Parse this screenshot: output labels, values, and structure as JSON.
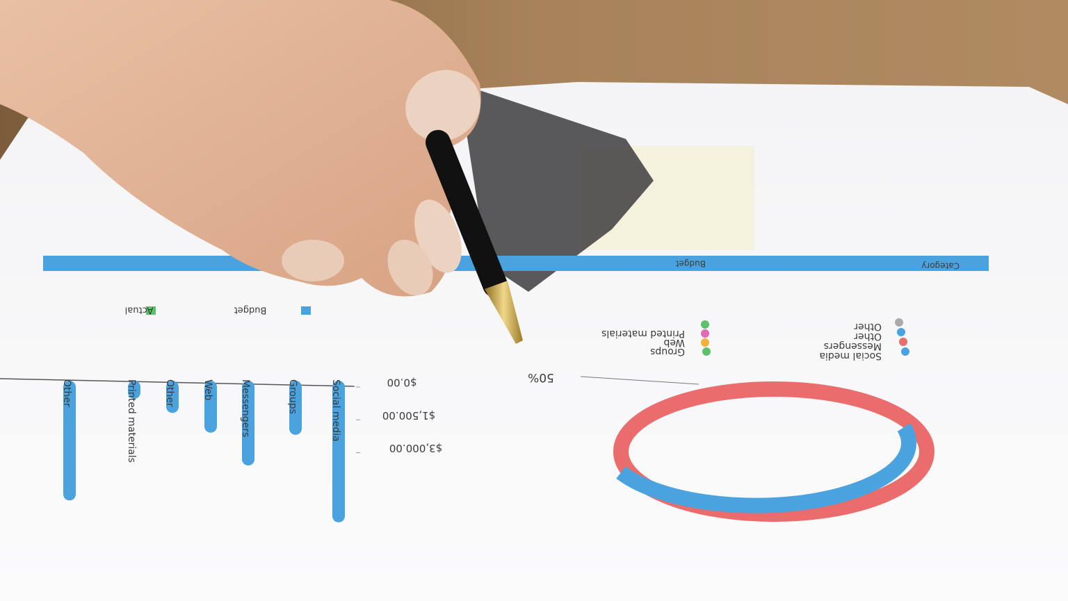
{
  "table_header": {
    "budget": "Budget",
    "category": "Category"
  },
  "bar_chart": {
    "legend": [
      "Budget",
      "Actual"
    ],
    "yticks": [
      {
        "value": 0,
        "label": "$0.00"
      },
      {
        "value": 1500,
        "label": "$1,500.00"
      },
      {
        "value": 3000,
        "label": "$3,000.00"
      }
    ],
    "categories": [
      "Social media",
      "Groups",
      "Messengers",
      "Web",
      "Other",
      "Printed materials",
      "Other"
    ],
    "values": [
      5900,
      1900,
      3300,
      1800,
      900,
      250,
      4900
    ],
    "color": "#4aa3df"
  },
  "donut_chart": {
    "label": "50%",
    "legend_left": [
      "Printed materials",
      "Web",
      "Groups"
    ],
    "legend_right": [
      "Other",
      "Other",
      "Messengers",
      "Social media"
    ]
  }
}
